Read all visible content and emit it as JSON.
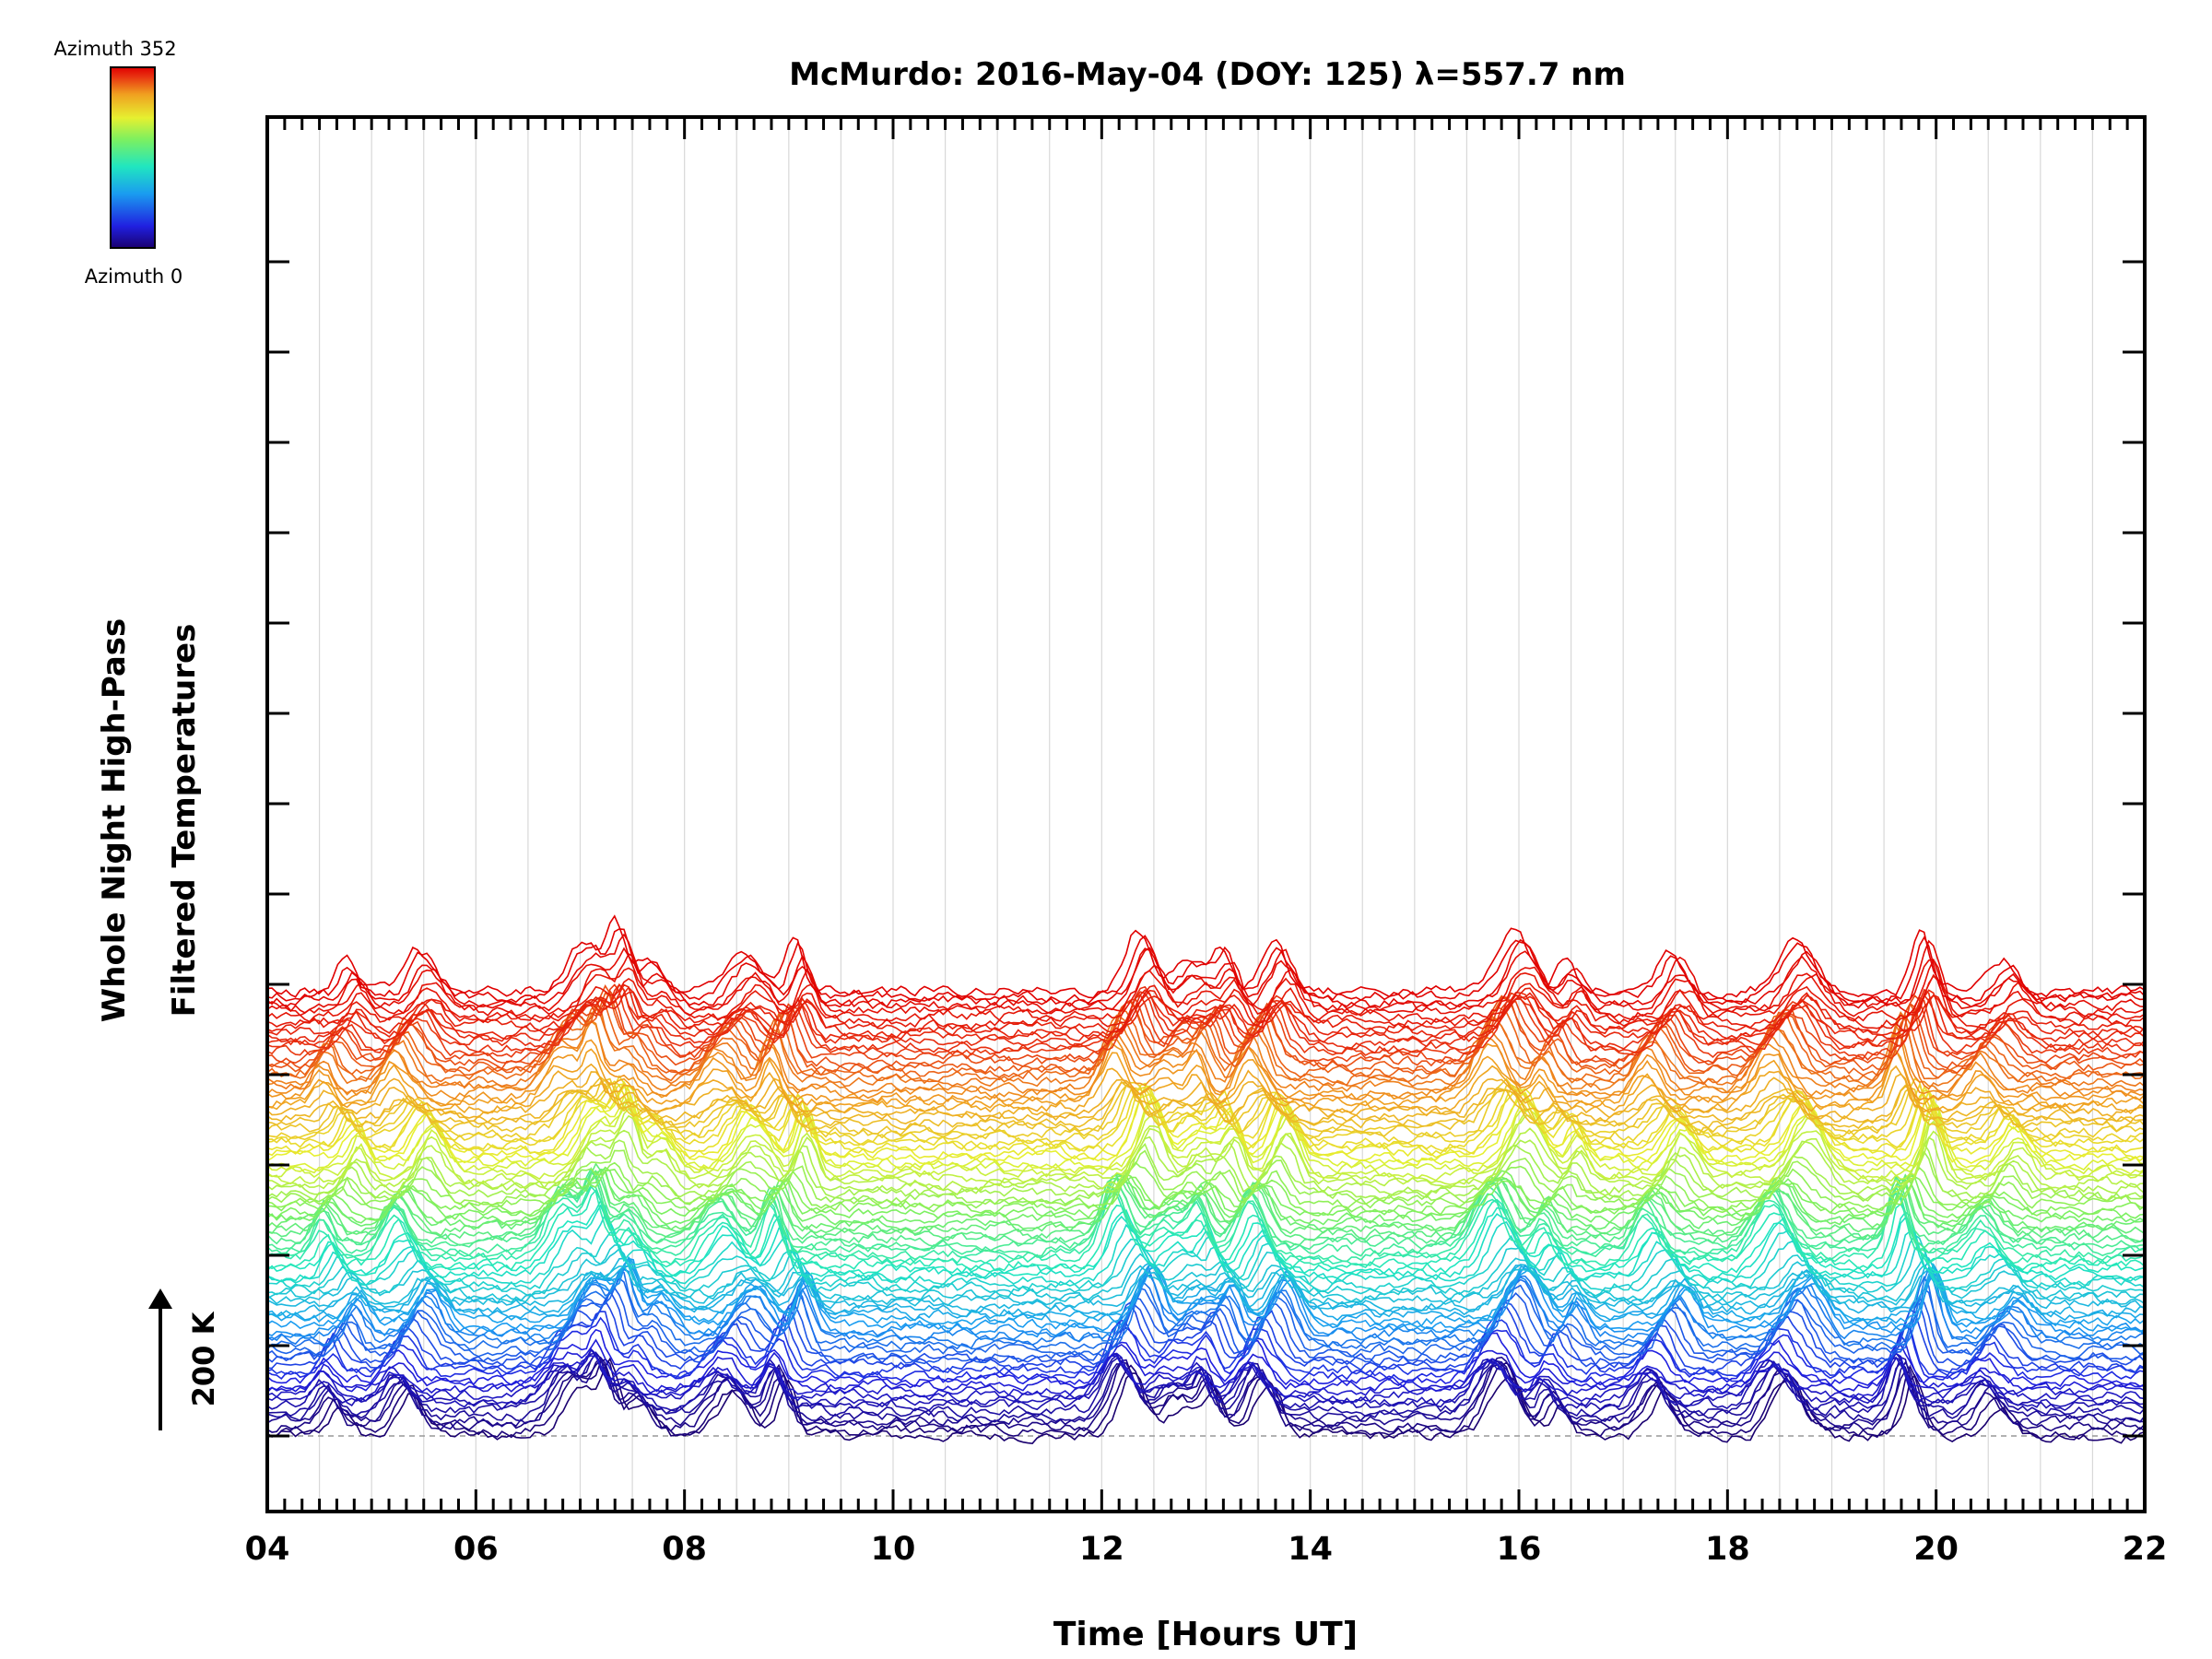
{
  "chart_data": {
    "type": "line",
    "title": "McMurdo: 2016-May-04 (DOY: 125) λ=557.7 nm",
    "xlabel": "Time [Hours UT]",
    "ylabel_line1": "Whole Night High-Pass",
    "ylabel_line2": "Filtered Temperatures",
    "scale_bar_label": "200 K",
    "xlim": [
      4,
      22
    ],
    "x_ticks": [
      4,
      6,
      8,
      10,
      12,
      14,
      16,
      18,
      20,
      22
    ],
    "x_tick_labels": [
      "04",
      "06",
      "08",
      "10",
      "12",
      "14",
      "16",
      "18",
      "20",
      "22"
    ],
    "vertical_gridlines_hours": [
      4.5,
      5,
      5.5,
      6,
      6.5,
      7,
      7.5,
      8,
      8.5,
      9,
      9.5,
      10,
      10.5,
      11,
      11.5,
      12,
      12.5,
      13,
      13.5,
      14,
      14.5,
      15,
      15.5,
      16,
      16.5,
      17,
      17.5,
      18,
      18.5,
      19,
      19.5,
      20,
      20.5,
      21,
      21.5
    ],
    "colorbar": {
      "label_top": "Azimuth 352",
      "label_bottom": "Azimuth 0",
      "azimuth_min": 0,
      "azimuth_max": 352,
      "colormap": [
        "#1a0070",
        "#2020e0",
        "#1a9cf0",
        "#20e6c0",
        "#7cf060",
        "#e6f030",
        "#f0a020",
        "#e83010",
        "#e00000"
      ]
    },
    "series_count": 89,
    "series_azimuth_step_deg": 4,
    "offset_per_series_K": 10,
    "stack_groups": 5,
    "event_peaks_hours": [
      4.7,
      5.4,
      7.0,
      7.3,
      7.6,
      8.5,
      9.0,
      12.3,
      12.8,
      13.1,
      13.6,
      15.9,
      16.4,
      17.4,
      18.6,
      19.8,
      20.6
    ]
  }
}
